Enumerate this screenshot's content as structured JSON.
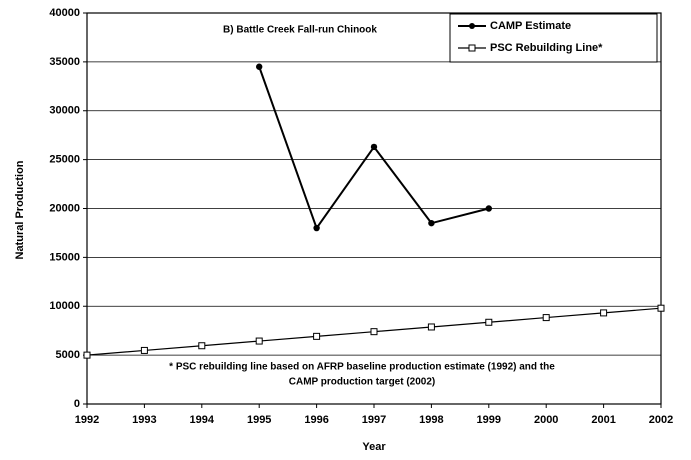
{
  "chart_data": {
    "type": "line",
    "annotation": "B) Battle Creek Fall-run Chinook",
    "footnote": [
      "* PSC rebuilding line based on AFRP baseline production estimate (1992) and the",
      "CAMP production target (2002)"
    ],
    "x_label": "Year",
    "y_label": "Natural Production",
    "x": [
      1992,
      1993,
      1994,
      1995,
      1996,
      1997,
      1998,
      1999,
      2000,
      2001,
      2002
    ],
    "series": [
      {
        "name": "CAMP Estimate",
        "color": "#000000",
        "marker": "filled-circle",
        "values": [
          null,
          null,
          null,
          34500,
          18000,
          26300,
          18500,
          20000,
          null,
          null,
          null
        ]
      },
      {
        "name": "PSC Rebuilding Line*",
        "color": "#000000",
        "marker": "open-square",
        "values": [
          5000,
          5480,
          5960,
          6440,
          6920,
          7400,
          7880,
          8360,
          8840,
          9320,
          9800
        ]
      }
    ],
    "xlim": [
      1992,
      2002
    ],
    "xticks": [
      1992,
      1993,
      1994,
      1995,
      1996,
      1997,
      1998,
      1999,
      2000,
      2001,
      2002
    ],
    "ylim": [
      0,
      40000
    ],
    "yticks": [
      0,
      5000,
      10000,
      15000,
      20000,
      25000,
      30000,
      35000,
      40000
    ],
    "grid": true,
    "legend": "upper-right"
  }
}
